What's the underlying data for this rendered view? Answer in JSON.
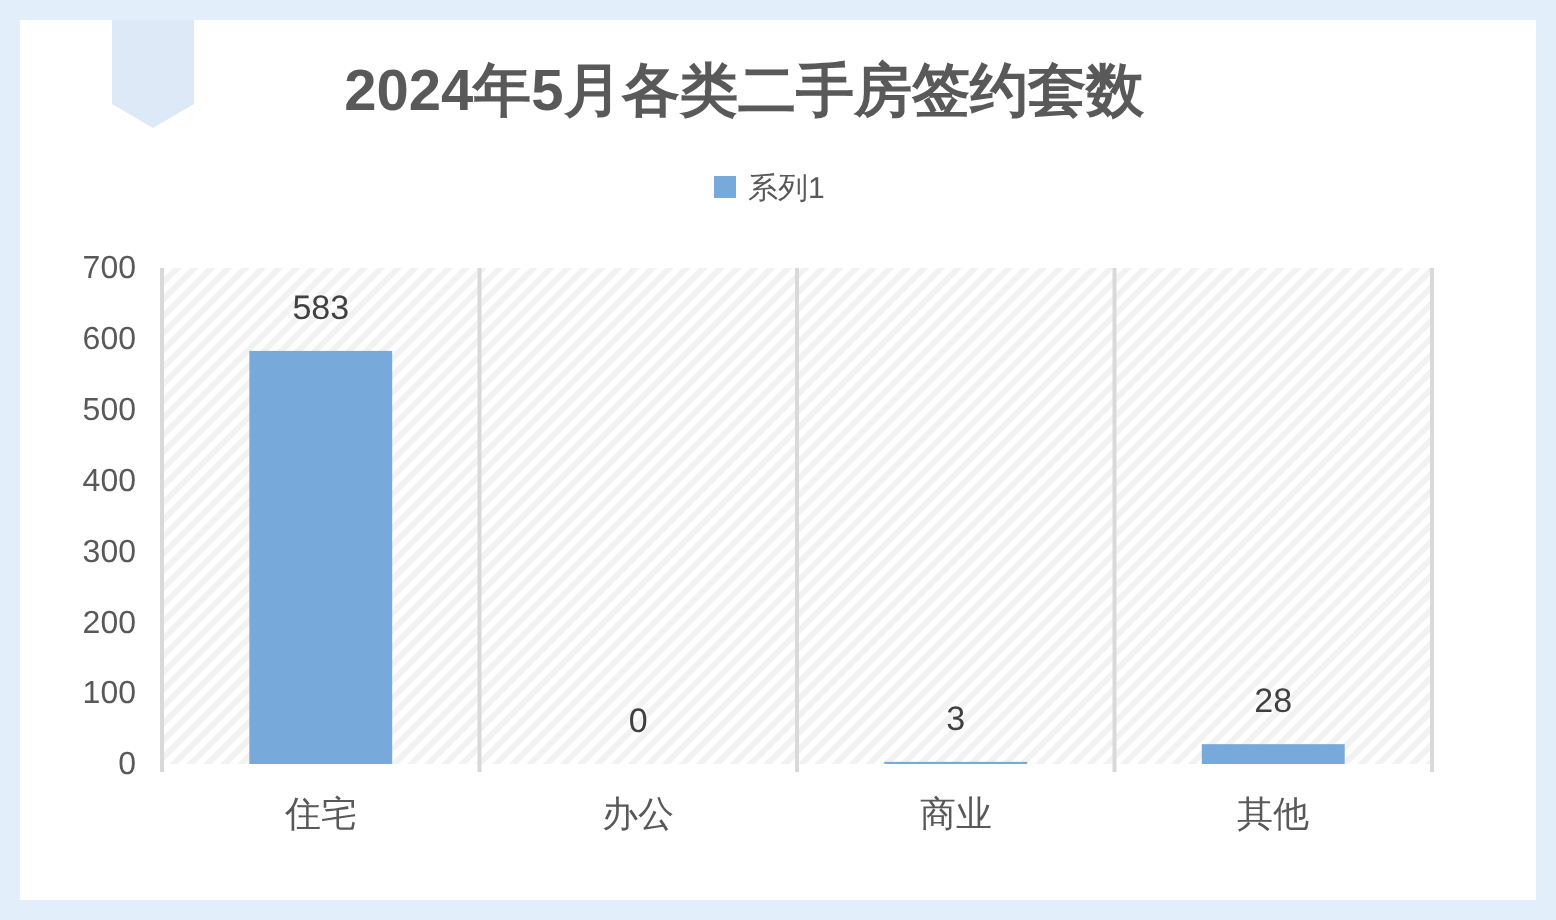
{
  "chart_data": {
    "type": "bar",
    "title": "2024年5月各类二手房签约套数",
    "categories": [
      "住宅",
      "办公",
      "商业",
      "其他"
    ],
    "series": [
      {
        "name": "系列1",
        "color": "#77a9da",
        "values": [
          583,
          0,
          3,
          28
        ]
      }
    ],
    "ylim": [
      0,
      700
    ],
    "yticks": [
      0,
      100,
      200,
      300,
      400,
      500,
      600,
      700
    ],
    "grid": "x",
    "legend": "top",
    "data_labels": true
  }
}
